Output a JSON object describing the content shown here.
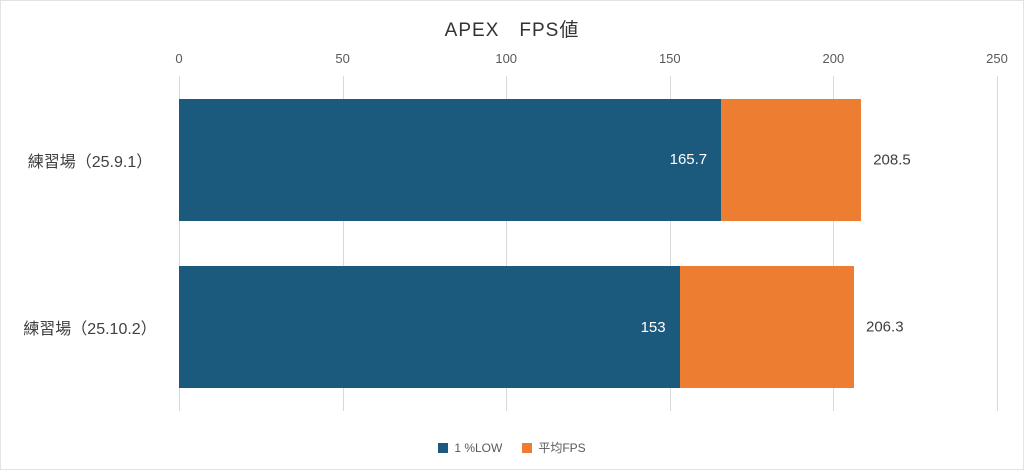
{
  "chart_data": {
    "type": "bar",
    "orientation": "horizontal",
    "title": "APEX　FPS値",
    "categories": [
      "練習場（25.9.1）",
      "練習場（25.10.2）"
    ],
    "series": [
      {
        "name": "1 %LOW",
        "color": "#1b5a7c",
        "values": [
          165.7,
          153
        ]
      },
      {
        "name": "平均FPS",
        "color": "#ed7d31",
        "values": [
          208.5,
          206.3
        ]
      }
    ],
    "inside_labels": [
      "165.7",
      "153"
    ],
    "outside_labels": [
      "208.5",
      "206.3"
    ],
    "xlim": [
      0,
      250
    ],
    "ticks": [
      0,
      50,
      100,
      150,
      200,
      250
    ],
    "grid": true,
    "legend_position": "bottom",
    "colors": {
      "grid": "#d9d9d9",
      "tick_text": "#595959",
      "title_text": "#333333",
      "label_text": "#404040"
    }
  }
}
